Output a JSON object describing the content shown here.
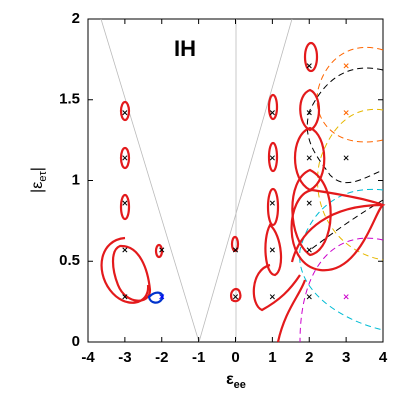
{
  "chart_data": {
    "type": "scatter",
    "annotation": "IH",
    "xlabel": "ε",
    "xlabel_sub": "ee",
    "ylabel": "|ε",
    "ylabel_sub": "eτ",
    "ylabel_end": "|",
    "xlim": [
      -4,
      4
    ],
    "ylim": [
      0,
      2
    ],
    "xticks": [
      -4,
      -3,
      -2,
      -1,
      0,
      1,
      2,
      3,
      4
    ],
    "yticks": [
      0,
      0.5,
      1,
      1.5,
      2
    ],
    "points": [
      {
        "color": "#000000",
        "x": [
          -3,
          -3,
          -3,
          -3,
          -3,
          -2,
          0,
          0,
          1,
          1,
          1,
          1,
          1,
          2,
          2,
          2,
          2,
          2,
          2,
          3
        ],
        "y": [
          0.28,
          0.57,
          0.86,
          1.14,
          1.42,
          0.57,
          0.28,
          0.57,
          0.28,
          0.57,
          0.86,
          1.14,
          1.42,
          0.28,
          0.57,
          0.86,
          1.14,
          1.42,
          1.71,
          1.14
        ]
      },
      {
        "color": "#0000ff",
        "x": [
          -2
        ],
        "y": [
          0.28
        ]
      },
      {
        "color": "#cc00cc",
        "x": [
          3
        ],
        "y": [
          0.28
        ]
      },
      {
        "color": "#ff6600",
        "x": [
          3,
          3
        ],
        "y": [
          1.42,
          1.71
        ]
      }
    ]
  }
}
